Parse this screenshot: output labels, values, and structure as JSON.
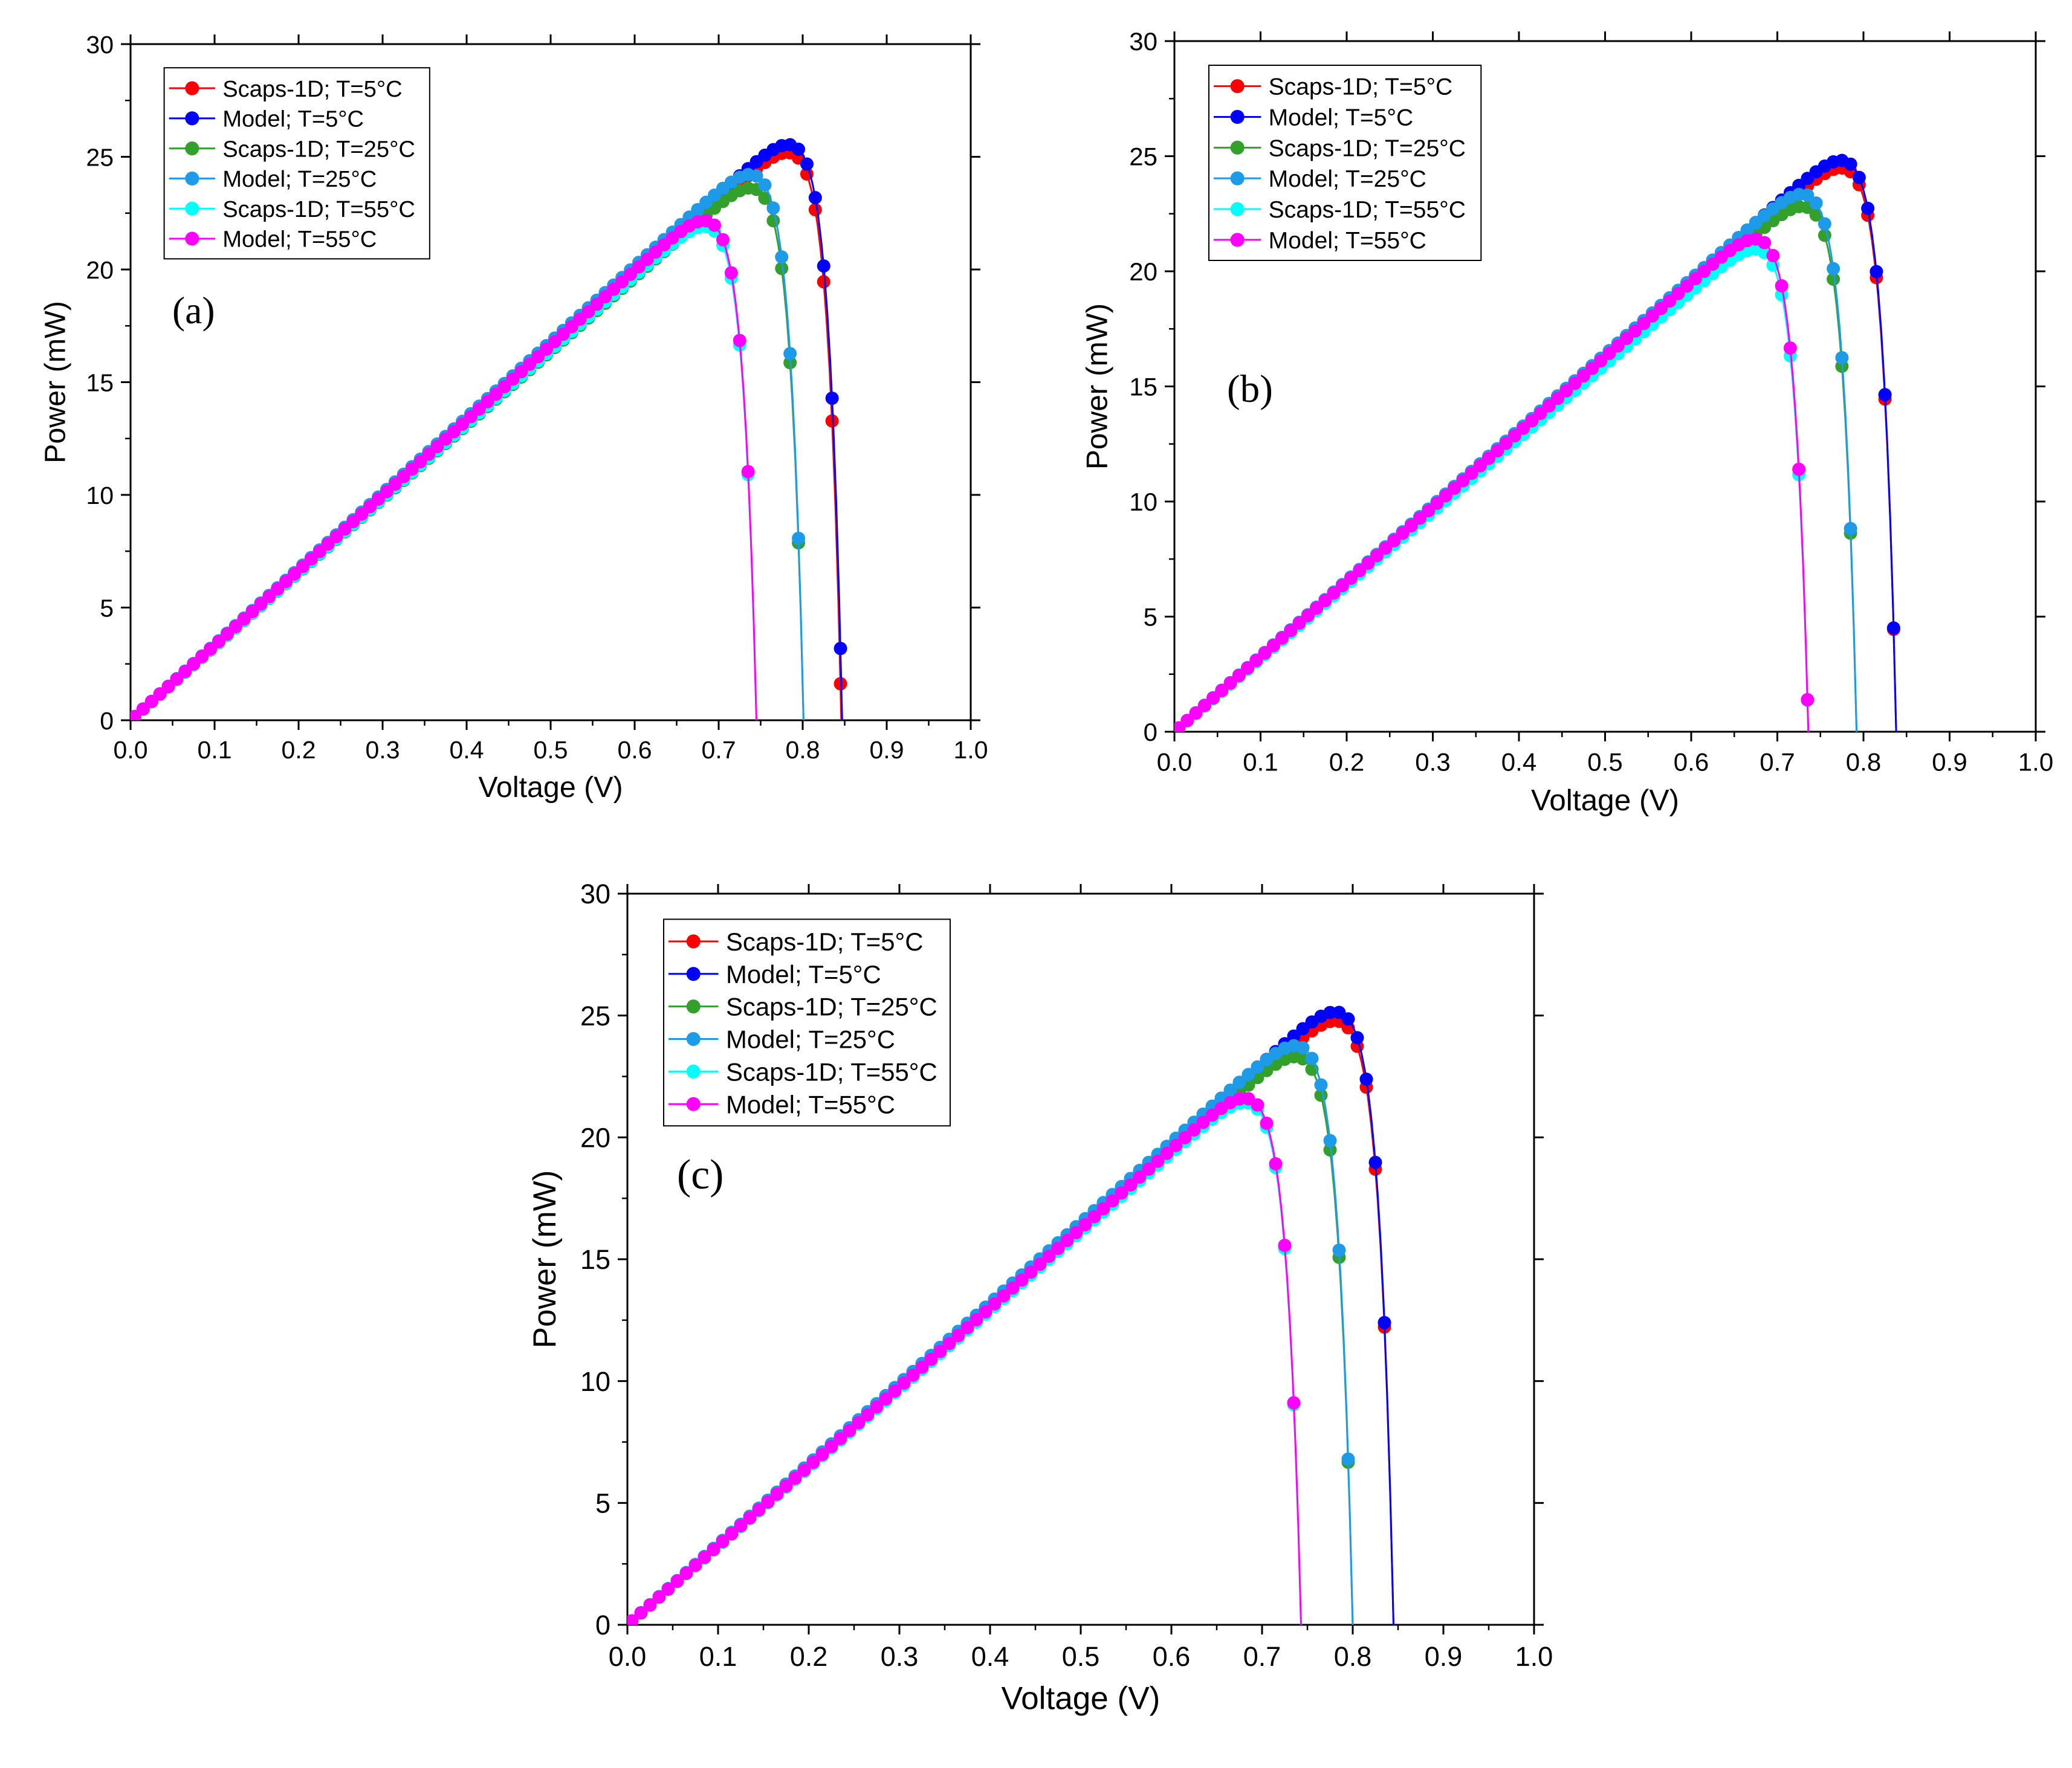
{
  "figure": {
    "panels": [
      "a",
      "b",
      "c"
    ]
  },
  "chart_data": [
    {
      "id": "a",
      "type": "line",
      "panel_label": "(a)",
      "title": "",
      "xlabel": "Voltage (V)",
      "ylabel": "Power (mW)",
      "xlim": [
        0.0,
        1.0
      ],
      "ylim": [
        0,
        30
      ],
      "x_ticks": [
        "0.0",
        "0.1",
        "0.2",
        "0.3",
        "0.4",
        "0.5",
        "0.6",
        "0.7",
        "0.8",
        "0.9",
        "1.0"
      ],
      "y_ticks": [
        "0",
        "5",
        "10",
        "15",
        "20",
        "25",
        "30"
      ],
      "grid": false,
      "legend_position": "top-left",
      "series": [
        {
          "name": "Scaps-1D; T=5°C",
          "color": "#ff0000",
          "voc": 0.846,
          "pmax": 24.8,
          "vmp": 0.757
        },
        {
          "name": "Model; T=5°C",
          "color": "#0000ff",
          "voc": 0.847,
          "pmax": 25.2,
          "vmp": 0.76
        },
        {
          "name": "Scaps-1D; T=25°C",
          "color": "#33a02c",
          "voc": 0.801,
          "pmax": 23.1,
          "vmp": 0.708
        },
        {
          "name": "Model; T=25°C",
          "color": "#1e9be8",
          "voc": 0.801,
          "pmax": 23.6,
          "vmp": 0.705
        },
        {
          "name": "Scaps-1D; T=55°C",
          "color": "#00ffff",
          "voc": 0.745,
          "pmax": 21.0,
          "vmp": 0.64
        },
        {
          "name": "Model; T=55°C",
          "color": "#ff00ff",
          "voc": 0.745,
          "pmax": 21.4,
          "vmp": 0.645
        }
      ]
    },
    {
      "id": "b",
      "type": "line",
      "panel_label": "(b)",
      "title": "",
      "xlabel": "Voltage (V)",
      "ylabel": "Power (mW)",
      "xlim": [
        0.0,
        1.0
      ],
      "ylim": [
        0,
        30
      ],
      "x_ticks": [
        "0.0",
        "0.1",
        "0.2",
        "0.3",
        "0.4",
        "0.5",
        "0.6",
        "0.7",
        "0.8",
        "0.9",
        "1.0"
      ],
      "y_ticks": [
        "0",
        "5",
        "10",
        "15",
        "20",
        "25",
        "30"
      ],
      "grid": false,
      "legend_position": "top-left",
      "series": [
        {
          "name": "Scaps-1D; T=5°C",
          "color": "#ff0000",
          "voc": 0.838,
          "pmax": 24.0,
          "vmp": 0.745
        },
        {
          "name": "Model; T=5°C",
          "color": "#0000ff",
          "voc": 0.838,
          "pmax": 24.4,
          "vmp": 0.748
        },
        {
          "name": "Scaps-1D; T=25°C",
          "color": "#33a02c",
          "voc": 0.792,
          "pmax": 22.2,
          "vmp": 0.695
        },
        {
          "name": "Model; T=25°C",
          "color": "#1e9be8",
          "voc": 0.792,
          "pmax": 22.8,
          "vmp": 0.698
        },
        {
          "name": "Scaps-1D; T=55°C",
          "color": "#00ffff",
          "voc": 0.736,
          "pmax": 20.2,
          "vmp": 0.635
        },
        {
          "name": "Model; T=55°C",
          "color": "#ff00ff",
          "voc": 0.736,
          "pmax": 20.9,
          "vmp": 0.645
        }
      ]
    },
    {
      "id": "c",
      "type": "line",
      "panel_label": "(c)",
      "title": "",
      "xlabel": "Voltage (V)",
      "ylabel": "Power (mW)",
      "xlim": [
        0.0,
        1.0
      ],
      "ylim": [
        0,
        30
      ],
      "x_ticks": [
        "0.0",
        "0.1",
        "0.2",
        "0.3",
        "0.4",
        "0.5",
        "0.6",
        "0.7",
        "0.8",
        "0.9",
        "1.0"
      ],
      "y_ticks": [
        "0",
        "5",
        "10",
        "15",
        "20",
        "25",
        "30"
      ],
      "grid": false,
      "legend_position": "top-left",
      "series": [
        {
          "name": "Scaps-1D; T=5°C",
          "color": "#ff0000",
          "voc": 0.845,
          "pmax": 24.1,
          "vmp": 0.745
        },
        {
          "name": "Model; T=5°C",
          "color": "#0000ff",
          "voc": 0.845,
          "pmax": 24.6,
          "vmp": 0.75
        },
        {
          "name": "Scaps-1D; T=25°C",
          "color": "#33a02c",
          "voc": 0.8,
          "pmax": 22.6,
          "vmp": 0.7
        },
        {
          "name": "Model; T=25°C",
          "color": "#1e9be8",
          "voc": 0.8,
          "pmax": 23.1,
          "vmp": 0.702
        },
        {
          "name": "Scaps-1D; T=55°C",
          "color": "#00ffff",
          "voc": 0.743,
          "pmax": 20.6,
          "vmp": 0.64
        },
        {
          "name": "Model; T=55°C",
          "color": "#ff00ff",
          "voc": 0.743,
          "pmax": 21.0,
          "vmp": 0.648
        }
      ]
    }
  ]
}
